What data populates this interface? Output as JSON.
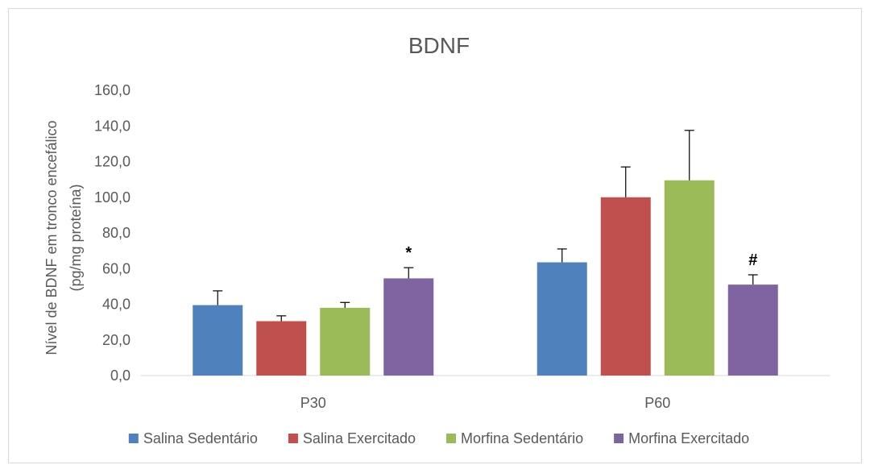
{
  "chart_data": {
    "type": "bar",
    "title": "BDNF",
    "ylabel_line1": "Nível de BDNF em tronco encefálico",
    "ylabel_line2": "(pg/mg proteína)",
    "xlabel": "",
    "categories": [
      "P30",
      "P60"
    ],
    "ylim": [
      0,
      160
    ],
    "yticks": [
      0,
      20,
      40,
      60,
      80,
      100,
      120,
      140,
      160
    ],
    "ytick_labels": [
      "0,0",
      "20,0",
      "40,0",
      "60,0",
      "80,0",
      "100,0",
      "120,0",
      "140,0",
      "160,0"
    ],
    "grid": false,
    "legend_position": "bottom",
    "series": [
      {
        "name": "Salina Sedentário",
        "color": "#4f81bd",
        "values": [
          39.5,
          63.5
        ],
        "errors": [
          8.0,
          7.5
        ]
      },
      {
        "name": "Salina Exercitado",
        "color": "#c0504d",
        "values": [
          30.5,
          100.0
        ],
        "errors": [
          3.0,
          17.0
        ]
      },
      {
        "name": "Morfina Sedentário",
        "color": "#9bbb59",
        "values": [
          38.0,
          109.5
        ],
        "errors": [
          3.0,
          28.0
        ]
      },
      {
        "name": "Morfina Exercitado",
        "color": "#8064a2",
        "values": [
          54.5,
          51.0
        ],
        "errors": [
          6.0,
          5.5
        ]
      }
    ],
    "annotations": [
      {
        "category": "P30",
        "series": "Morfina Exercitado",
        "text": "*"
      },
      {
        "category": "P60",
        "series": "Morfina Exercitado",
        "text": "#"
      }
    ]
  }
}
